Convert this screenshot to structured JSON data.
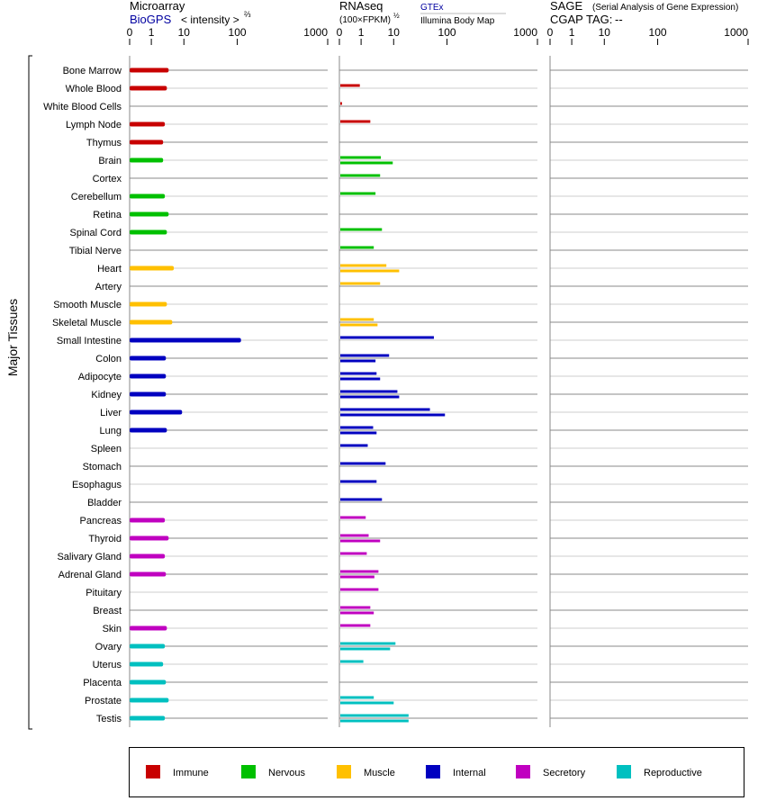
{
  "chart_data": {
    "type": "bar",
    "ylabel": "Major Tissues",
    "categories": [
      "Bone Marrow",
      "Whole Blood",
      "White Blood Cells",
      "Lymph Node",
      "Thymus",
      "Brain",
      "Cortex",
      "Cerebellum",
      "Retina",
      "Spinal Cord",
      "Tibial Nerve",
      "Heart",
      "Artery",
      "Smooth Muscle",
      "Skeletal Muscle",
      "Small Intestine",
      "Colon",
      "Adipocyte",
      "Kidney",
      "Liver",
      "Lung",
      "Spleen",
      "Stomach",
      "Esophagus",
      "Bladder",
      "Pancreas",
      "Thyroid",
      "Salivary Gland",
      "Adrenal Gland",
      "Pituitary",
      "Breast",
      "Skin",
      "Ovary",
      "Uterus",
      "Placenta",
      "Prostate",
      "Testis"
    ],
    "groups": [
      "Immune",
      "Immune",
      "Immune",
      "Immune",
      "Immune",
      "Nervous",
      "Nervous",
      "Nervous",
      "Nervous",
      "Nervous",
      "Nervous",
      "Muscle",
      "Muscle",
      "Muscle",
      "Muscle",
      "Internal",
      "Internal",
      "Internal",
      "Internal",
      "Internal",
      "Internal",
      "Internal",
      "Internal",
      "Internal",
      "Internal",
      "Secretory",
      "Secretory",
      "Secretory",
      "Secretory",
      "Secretory",
      "Secretory",
      "Secretory",
      "Reproductive",
      "Reproductive",
      "Reproductive",
      "Reproductive",
      "Reproductive"
    ],
    "legend": [
      {
        "name": "Immune",
        "color": "#c80000"
      },
      {
        "name": "Nervous",
        "color": "#00c000"
      },
      {
        "name": "Muscle",
        "color": "#ffc000"
      },
      {
        "name": "Internal",
        "color": "#0000c0"
      },
      {
        "name": "Secretory",
        "color": "#c000c0"
      },
      {
        "name": "Reproductive",
        "color": "#00c0c0"
      }
    ],
    "legend_position": "bottom",
    "ticks": [
      "0",
      "1",
      "10",
      "100",
      "1000"
    ],
    "tick_values": [
      0,
      1,
      10,
      100,
      1000
    ],
    "panels": [
      {
        "title": "Microarray",
        "source": "BioGPS",
        "subtitle": "< intensity >",
        "exponent": "⅔",
        "range": [
          0,
          1000
        ],
        "series": [
          {
            "name": "BioGPS",
            "values": [
              3.4,
              3.0,
              null,
              2.6,
              2.3,
              2.3,
              null,
              2.6,
              3.4,
              3.0,
              null,
              4.9,
              null,
              3.0,
              4.4,
              110,
              2.8,
              2.8,
              2.8,
              8.8,
              3.0,
              null,
              null,
              null,
              null,
              2.6,
              3.4,
              2.6,
              2.8,
              null,
              null,
              3.0,
              2.6,
              2.3,
              2.8,
              3.4,
              2.6
            ]
          }
        ]
      },
      {
        "title": "RNAseq",
        "subtitle": "(100×FPKM)",
        "exponent": "½",
        "source_top": "GTEx",
        "source_bottom": "Illumina Body Map",
        "range": [
          0,
          1000
        ],
        "series": [
          {
            "name": "GTEx",
            "values": [
              null,
              0.9,
              0.08,
              1.8,
              null,
              3.8,
              3.6,
              2.6,
              null,
              4.1,
              2.3,
              5.6,
              3.6,
              null,
              2.3,
              54.6,
              6.8,
              2.8,
              11.3,
              46,
              2.2,
              1.5,
              5.3,
              2.8,
              4.1,
              1.3,
              1.6,
              1.4,
              3.2,
              3.2,
              1.8,
              1.8,
              10.4,
              1.1,
              null,
              2.3,
              18.3
            ]
          },
          {
            "name": "Illumina Body Map",
            "values": [
              null,
              null,
              null,
              null,
              null,
              8.8,
              null,
              null,
              null,
              null,
              null,
              12.2,
              null,
              null,
              3.0,
              null,
              2.6,
              3.6,
              12.2,
              88,
              2.8,
              null,
              null,
              null,
              null,
              null,
              3.6,
              null,
              2.4,
              null,
              2.3,
              null,
              7.3,
              null,
              null,
              9.4,
              18.3
            ]
          }
        ]
      },
      {
        "title": "SAGE",
        "subtitle_note": "(Serial Analysis of Gene Expression)",
        "tag_label": "CGAP TAG:",
        "tag_value": "--",
        "range": [
          0,
          1000
        ],
        "series": []
      }
    ]
  }
}
